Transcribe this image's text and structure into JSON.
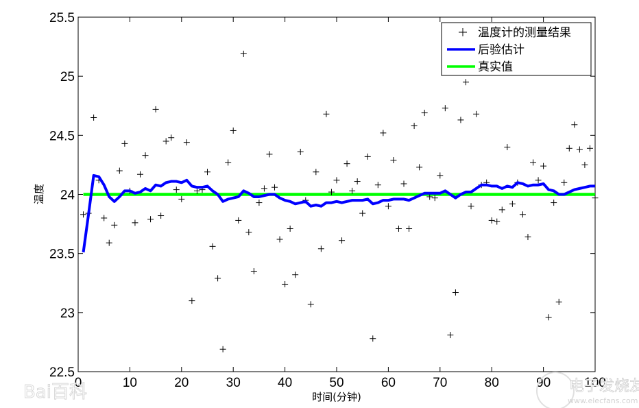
{
  "chart_data": {
    "type": "line",
    "title": "",
    "xlabel": "时间(分钟)",
    "ylabel": "温度",
    "xlim": [
      0,
      100
    ],
    "ylim": [
      22.5,
      25.5
    ],
    "xticks": [
      0,
      10,
      20,
      30,
      40,
      50,
      60,
      70,
      80,
      90,
      100
    ],
    "yticks": [
      22.5,
      23,
      23.5,
      24,
      24.5,
      25,
      25.5
    ],
    "ytick_labels": [
      "22.5",
      "23",
      "23.5",
      "24",
      "24.5",
      "25",
      "25.5"
    ],
    "xtick_labels": [
      "0",
      "10",
      "20",
      "30",
      "40",
      "50",
      "60",
      "70",
      "80",
      "90",
      "100"
    ],
    "grid": false,
    "legend_position": "upper right",
    "legend": [
      "温度计的测量结果",
      "后验估计",
      "真实值"
    ],
    "series": [
      {
        "name": "温度计的测量结果",
        "style": "markers-plus",
        "color": "#000000",
        "x": [
          1,
          2,
          3,
          4,
          5,
          6,
          7,
          8,
          9,
          10,
          11,
          12,
          13,
          14,
          15,
          16,
          17,
          18,
          19,
          20,
          21,
          22,
          23,
          24,
          25,
          26,
          27,
          28,
          29,
          30,
          31,
          32,
          33,
          34,
          35,
          36,
          37,
          38,
          39,
          40,
          41,
          42,
          43,
          44,
          45,
          46,
          47,
          48,
          49,
          50,
          51,
          52,
          53,
          54,
          55,
          56,
          57,
          58,
          59,
          60,
          61,
          62,
          63,
          64,
          65,
          66,
          67,
          68,
          69,
          70,
          71,
          72,
          73,
          74,
          75,
          76,
          77,
          78,
          79,
          80,
          81,
          82,
          83,
          84,
          85,
          86,
          87,
          88,
          89,
          90,
          91,
          92,
          93,
          94,
          95,
          96,
          97,
          98,
          99,
          100
        ],
        "values": [
          23.83,
          23.84,
          24.65,
          24.12,
          23.8,
          23.59,
          23.74,
          24.2,
          24.43,
          24.03,
          23.76,
          24.17,
          24.33,
          23.79,
          24.72,
          23.82,
          24.45,
          24.48,
          24.04,
          23.96,
          24.44,
          23.1,
          24.03,
          24.04,
          24.19,
          23.56,
          23.29,
          22.69,
          24.27,
          24.54,
          23.78,
          25.19,
          23.68,
          23.35,
          23.93,
          24.05,
          24.34,
          24.06,
          23.62,
          23.24,
          23.71,
          23.32,
          24.36,
          23.95,
          23.07,
          24.19,
          23.54,
          24.68,
          24.02,
          24.12,
          23.61,
          24.26,
          24.03,
          24.11,
          23.84,
          24.32,
          22.78,
          24.08,
          24.52,
          23.9,
          24.29,
          23.71,
          24.09,
          23.71,
          24.58,
          24.23,
          24.69,
          23.98,
          23.97,
          24.16,
          24.73,
          22.81,
          23.17,
          24.63,
          24.95,
          23.9,
          24.68,
          24.08,
          24.1,
          23.78,
          23.77,
          23.87,
          24.4,
          23.92,
          24.1,
          23.83,
          23.64,
          24.27,
          24.12,
          24.24,
          22.96,
          23.93,
          23.09,
          24.1,
          24.39,
          24.59,
          24.38,
          24.25,
          24.39,
          23.97
        ]
      },
      {
        "name": "后验估计",
        "style": "line",
        "color": "#0000ff",
        "x": [
          1,
          2,
          3,
          4,
          5,
          6,
          7,
          8,
          9,
          10,
          11,
          12,
          13,
          14,
          15,
          16,
          17,
          18,
          19,
          20,
          21,
          22,
          23,
          24,
          25,
          26,
          27,
          28,
          29,
          30,
          31,
          32,
          33,
          34,
          35,
          36,
          37,
          38,
          39,
          40,
          41,
          42,
          43,
          44,
          45,
          46,
          47,
          48,
          49,
          50,
          51,
          52,
          53,
          54,
          55,
          56,
          57,
          58,
          59,
          60,
          61,
          62,
          63,
          64,
          65,
          66,
          67,
          68,
          69,
          70,
          71,
          72,
          73,
          74,
          75,
          76,
          77,
          78,
          79,
          80,
          81,
          82,
          83,
          84,
          85,
          86,
          87,
          88,
          89,
          90,
          91,
          92,
          93,
          94,
          95,
          96,
          97,
          98,
          99,
          100
        ],
        "values": [
          23.51,
          23.83,
          24.16,
          24.15,
          24.08,
          23.98,
          23.94,
          23.98,
          24.03,
          24.03,
          24.01,
          24.02,
          24.05,
          24.03,
          24.08,
          24.07,
          24.1,
          24.11,
          24.11,
          24.1,
          24.12,
          24.07,
          24.06,
          24.06,
          24.07,
          24.03,
          24.0,
          23.94,
          23.96,
          23.97,
          23.98,
          24.03,
          24.01,
          23.98,
          23.98,
          23.99,
          24.0,
          24.0,
          23.97,
          23.95,
          23.94,
          23.92,
          23.93,
          23.94,
          23.9,
          23.91,
          23.9,
          23.93,
          23.93,
          23.94,
          23.93,
          23.94,
          23.95,
          23.95,
          23.95,
          23.96,
          23.92,
          23.93,
          23.95,
          23.95,
          23.96,
          23.96,
          23.96,
          23.95,
          23.97,
          23.99,
          24.01,
          24.01,
          24.01,
          24.01,
          24.03,
          24.0,
          23.97,
          24.0,
          24.02,
          24.02,
          24.05,
          24.08,
          24.08,
          24.07,
          24.07,
          24.05,
          24.07,
          24.06,
          24.1,
          24.09,
          24.07,
          24.08,
          24.08,
          24.09,
          24.04,
          24.03,
          24.0,
          24.0,
          24.02,
          24.04,
          24.05,
          24.06,
          24.07,
          24.07
        ]
      },
      {
        "name": "真实值",
        "style": "line",
        "color": "#00ff00",
        "x": [
          1,
          100
        ],
        "values": [
          24,
          24
        ]
      }
    ]
  },
  "watermarks": {
    "left": "Bai百科",
    "right_cn": "电子发烧友",
    "right_url": "www.elecfans.com"
  }
}
